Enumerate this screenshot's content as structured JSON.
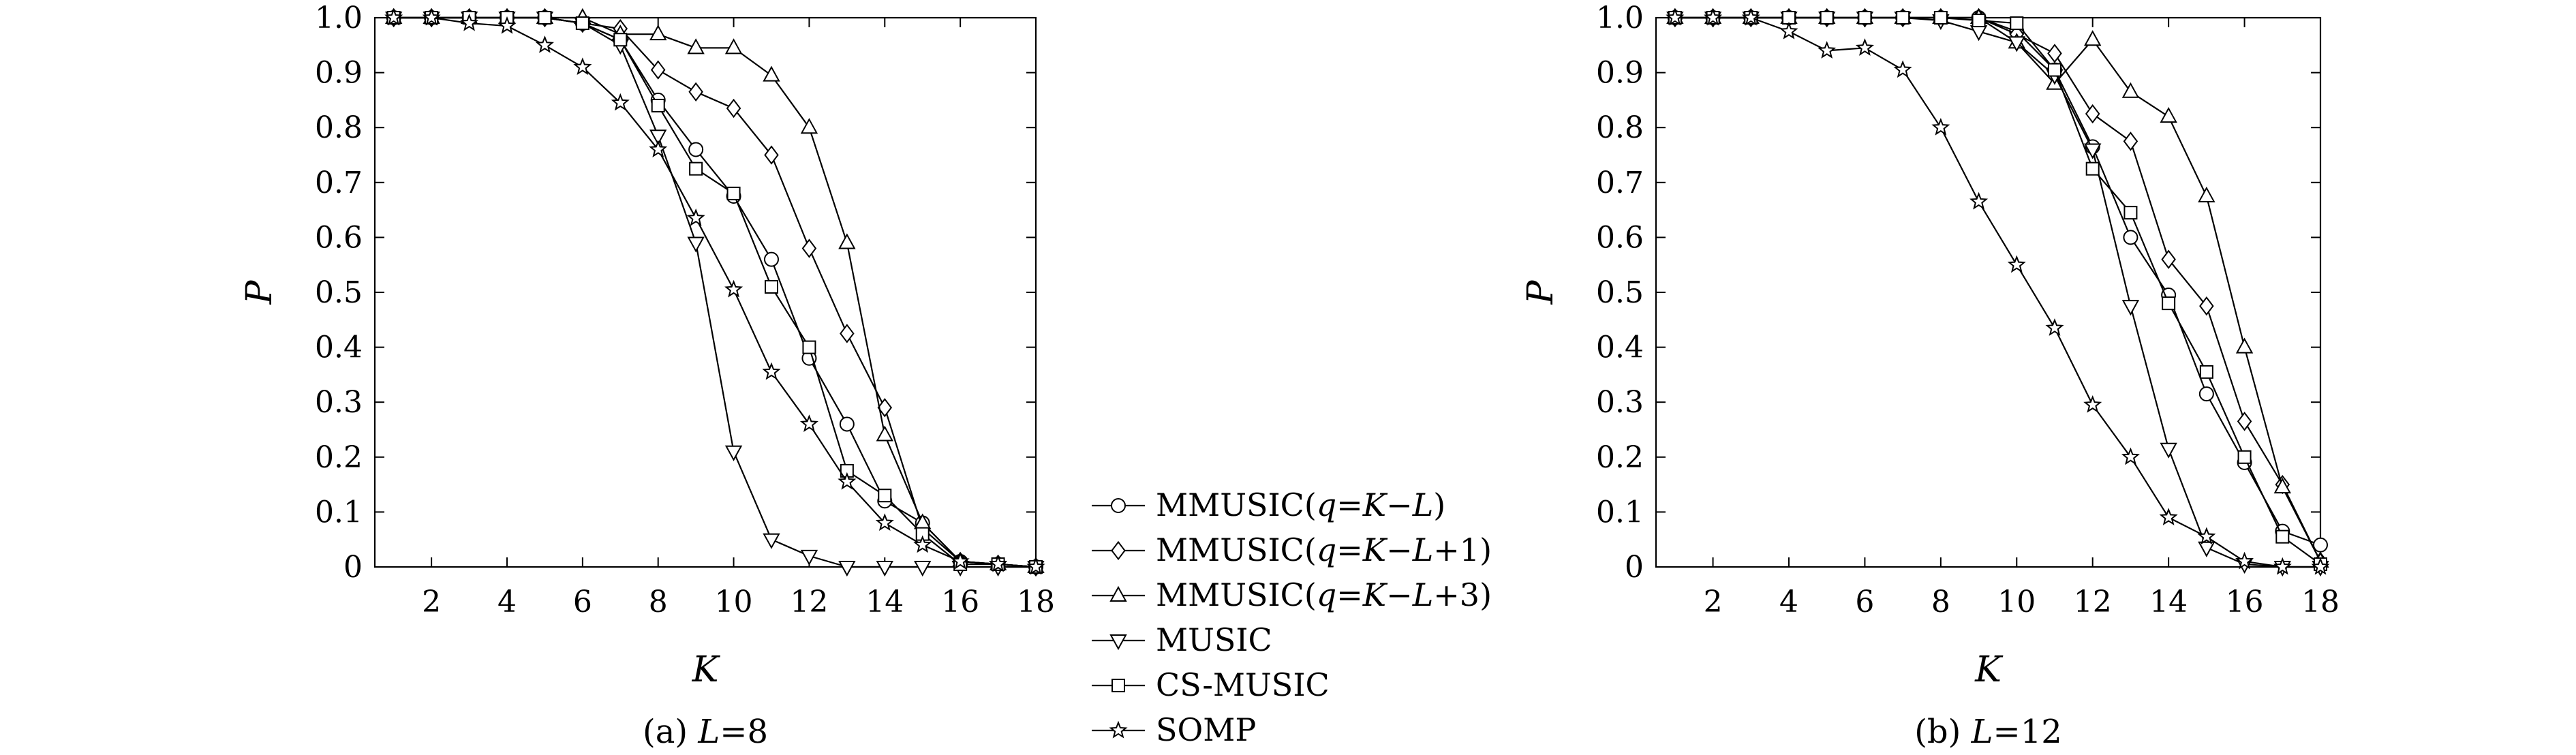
{
  "chart_data": [
    {
      "type": "line",
      "caption": "(a) L=8",
      "xlabel": "K",
      "ylabel": "P",
      "xlim": [
        0.5,
        18
      ],
      "ylim": [
        0,
        1
      ],
      "xticks": [
        2,
        4,
        6,
        8,
        10,
        12,
        14,
        16,
        18
      ],
      "yticks": [
        0,
        0.1,
        0.2,
        0.3,
        0.4,
        0.5,
        0.6,
        0.7,
        0.8,
        0.9,
        1.0
      ],
      "ytick_labels": [
        "0",
        "0.1",
        "0.2",
        "0.3",
        "0.4",
        "0.5",
        "0.6",
        "0.7",
        "0.8",
        "0.9",
        "1.0"
      ],
      "grid": false,
      "x": [
        1,
        2,
        3,
        4,
        5,
        6,
        7,
        8,
        9,
        10,
        11,
        12,
        13,
        14,
        15,
        16,
        17,
        18
      ],
      "series": [
        {
          "name": "MMUSIC(q=K−L)",
          "marker": "circle",
          "values": [
            1,
            1,
            1,
            1,
            1,
            0.99,
            0.96,
            0.85,
            0.76,
            0.675,
            0.56,
            0.38,
            0.26,
            0.12,
            0.08,
            0.01,
            0.005,
            0
          ]
        },
        {
          "name": "MMUSIC(q=K−L+1)",
          "marker": "diamond",
          "values": [
            1,
            1,
            1,
            1,
            1,
            0.99,
            0.98,
            0.905,
            0.865,
            0.835,
            0.75,
            0.58,
            0.425,
            0.29,
            0.07,
            0.01,
            0.005,
            0
          ]
        },
        {
          "name": "MMUSIC(q=K−L+3)",
          "marker": "triangle-up",
          "values": [
            1,
            1,
            1,
            1,
            1,
            1,
            0.97,
            0.97,
            0.945,
            0.945,
            0.895,
            0.8,
            0.59,
            0.24,
            0.08,
            0.01,
            0.005,
            0
          ]
        },
        {
          "name": "MUSIC",
          "marker": "triangle-down",
          "values": [
            1,
            1,
            1,
            1,
            1,
            0.99,
            0.95,
            0.785,
            0.59,
            0.21,
            0.05,
            0.02,
            0,
            0,
            0,
            0,
            0,
            0
          ]
        },
        {
          "name": "CS-MUSIC",
          "marker": "square",
          "values": [
            1,
            1,
            1,
            1,
            1,
            0.99,
            0.96,
            0.84,
            0.725,
            0.68,
            0.51,
            0.4,
            0.175,
            0.13,
            0.06,
            0.005,
            0.005,
            0
          ]
        },
        {
          "name": "SOMP",
          "marker": "star",
          "values": [
            1,
            1,
            0.99,
            0.985,
            0.95,
            0.91,
            0.845,
            0.76,
            0.635,
            0.505,
            0.355,
            0.26,
            0.155,
            0.08,
            0.04,
            0.01,
            0.005,
            0
          ]
        }
      ]
    },
    {
      "type": "line",
      "caption": "(b) L=12",
      "xlabel": "K",
      "ylabel": "P",
      "xlim": [
        0.5,
        18
      ],
      "ylim": [
        0,
        1
      ],
      "xticks": [
        2,
        4,
        6,
        8,
        10,
        12,
        14,
        16,
        18
      ],
      "yticks": [
        0,
        0.1,
        0.2,
        0.3,
        0.4,
        0.5,
        0.6,
        0.7,
        0.8,
        0.9,
        1.0
      ],
      "ytick_labels": [
        "0",
        "0.1",
        "0.2",
        "0.3",
        "0.4",
        "0.5",
        "0.6",
        "0.7",
        "0.8",
        "0.9",
        "1.0"
      ],
      "grid": false,
      "x": [
        1,
        2,
        3,
        4,
        5,
        6,
        7,
        8,
        9,
        10,
        11,
        12,
        13,
        14,
        15,
        16,
        17,
        18
      ],
      "series": [
        {
          "name": "MMUSIC(q=K−L)",
          "marker": "circle",
          "values": [
            1,
            1,
            1,
            1,
            1,
            1,
            1,
            1,
            1,
            0.975,
            0.905,
            0.765,
            0.6,
            0.495,
            0.315,
            0.19,
            0.065,
            0.04
          ]
        },
        {
          "name": "MMUSIC(q=K−L+1)",
          "marker": "diamond",
          "values": [
            1,
            1,
            1,
            1,
            1,
            1,
            1,
            1,
            1,
            0.97,
            0.935,
            0.825,
            0.775,
            0.56,
            0.475,
            0.265,
            0.15,
            0.01
          ]
        },
        {
          "name": "MMUSIC(q=K−L+3)",
          "marker": "triangle-up",
          "values": [
            1,
            1,
            1,
            1,
            1,
            1,
            1,
            1,
            1,
            0.955,
            0.88,
            0.96,
            0.865,
            0.82,
            0.675,
            0.4,
            0.145,
            0.01
          ]
        },
        {
          "name": "MUSIC",
          "marker": "triangle-down",
          "values": [
            1,
            1,
            1,
            1,
            1,
            1,
            1,
            0.995,
            0.975,
            0.955,
            0.895,
            0.76,
            0.475,
            0.215,
            0.035,
            0.005,
            0,
            0
          ]
        },
        {
          "name": "CS-MUSIC",
          "marker": "square",
          "values": [
            1,
            1,
            1,
            1,
            1,
            1,
            1,
            1,
            0.995,
            0.99,
            0.905,
            0.725,
            0.645,
            0.48,
            0.355,
            0.2,
            0.055,
            0.005
          ]
        },
        {
          "name": "SOMP",
          "marker": "star",
          "values": [
            1,
            1,
            1,
            0.975,
            0.94,
            0.945,
            0.905,
            0.8,
            0.665,
            0.55,
            0.435,
            0.295,
            0.2,
            0.09,
            0.055,
            0.01,
            0,
            0
          ]
        }
      ]
    }
  ],
  "legend": {
    "placement": "between panels, bottom",
    "entries": [
      {
        "label": "MMUSIC(q=K−L)",
        "marker": "circle"
      },
      {
        "label": "MMUSIC(q=K−L+1)",
        "marker": "diamond"
      },
      {
        "label": "MMUSIC(q=K−L+3)",
        "marker": "triangle-up"
      },
      {
        "label": "MUSIC",
        "marker": "triangle-down"
      },
      {
        "label": "CS-MUSIC",
        "marker": "square"
      },
      {
        "label": "SOMP",
        "marker": "star"
      }
    ]
  }
}
